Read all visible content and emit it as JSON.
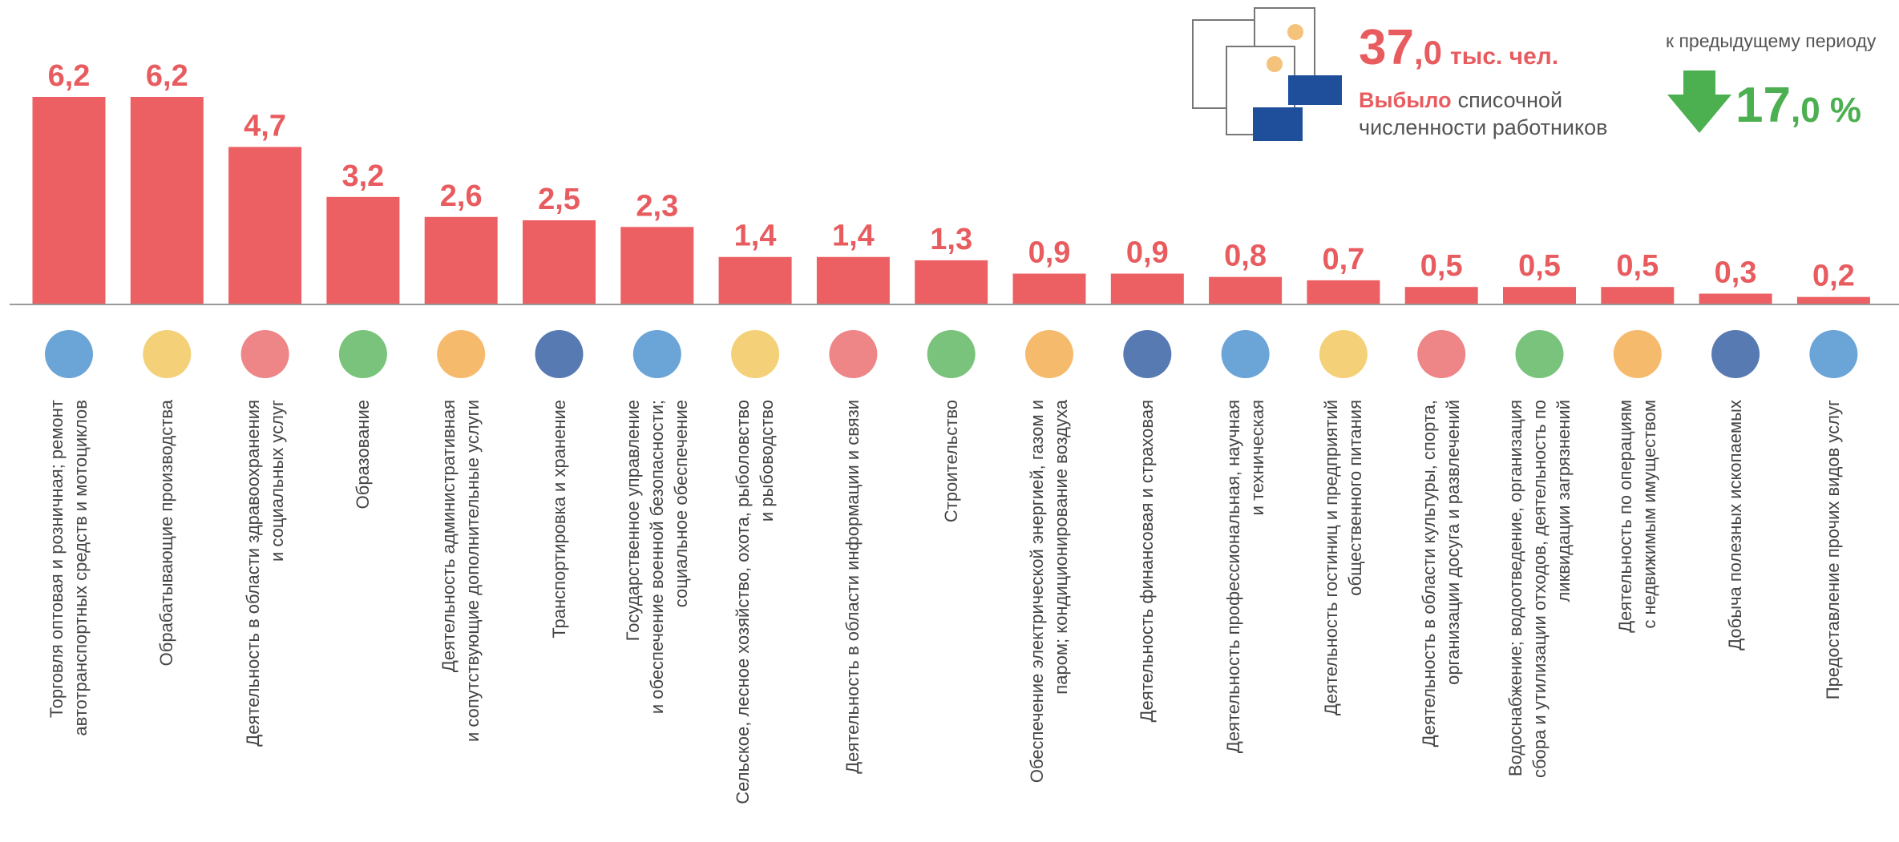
{
  "header": {
    "total_int": "37",
    "total_dec": ",0",
    "total_unit": "тыс. чел.",
    "caption_accent": "Выбыло",
    "caption_line1": "списочной",
    "caption_line2": "численности работников",
    "change_caption": "к предыдущему периоду",
    "change_int": "17",
    "change_dec": ",0 %"
  },
  "chart_data": {
    "type": "bar",
    "color": "#ec5f62",
    "categories": [
      "Торговля оптовая и розничная; ремонт\nавтотранспортных средств и мотоциклов",
      "Обрабатывающие производства",
      "Деятельность в области здравоохранения\nи социальных услуг",
      "Образование",
      "Деятельность административная\nи сопутствующие дополнительные услуги",
      "Транспортировка и хранение",
      "Государственное управление\nи обеспечение военной безопасности;\nсоциальное обеспечение",
      "Сельское, лесное хозяйство, охота, рыболовство\nи рыбоводство",
      "Деятельность в области информации и связи",
      "Строительство",
      "Обеспечение электрической энергией, газом и\nпаром; кондиционирование воздуха",
      "Деятельность финансовая и страховая",
      "Деятельность  профессиональная, научная\nи техническая",
      "Деятельность гостиниц и предприятий\nобщественного питания",
      "Деятельность в области культуры, спорта,\nорганизации досуга и развлечений",
      "Водоснабжение;  водоотведение, организация\nсбора и утилизации отходов, деятельность по\nликвидации загрязнений",
      "Деятельность по операциям\nс недвижимым имуществом",
      "Добыча полезных ископаемых",
      "Предоставление прочих видов услуг"
    ],
    "values": [
      6.2,
      6.2,
      4.7,
      3.2,
      2.6,
      2.5,
      2.3,
      1.4,
      1.4,
      1.3,
      0.9,
      0.9,
      0.8,
      0.7,
      0.5,
      0.5,
      0.5,
      0.3,
      0.2
    ],
    "value_labels": [
      "6,2",
      "6,2",
      "4,7",
      "3,2",
      "2,6",
      "2,5",
      "2,3",
      "1,4",
      "1,4",
      "1,3",
      "0,9",
      "0,9",
      "0,8",
      "0,7",
      "0,5",
      "0,5",
      "0,5",
      "0,3",
      "0,2"
    ]
  }
}
